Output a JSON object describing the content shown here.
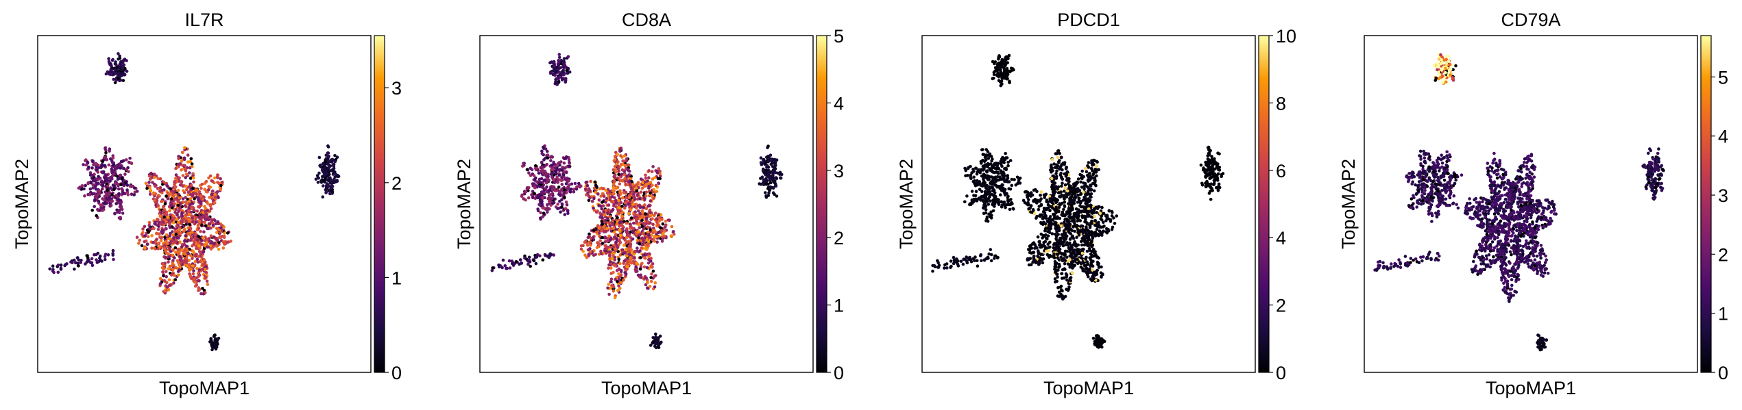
{
  "chart_data": [
    {
      "type": "scatter",
      "title": "IL7R",
      "xlabel": "TopoMAP1",
      "ylabel": "TopoMAP2",
      "colorbar": {
        "colormap": "inferno",
        "min": 0,
        "max": 3.55,
        "ticks": [
          0,
          1,
          2,
          3
        ]
      },
      "expression_level": {
        "main_cluster": 2.1,
        "left_cluster": 1.2,
        "top_cluster": 0.6,
        "right_cluster": 0.4,
        "bottom_cluster": 0.2,
        "left_tail": 0.7
      }
    },
    {
      "type": "scatter",
      "title": "CD8A",
      "xlabel": "TopoMAP1",
      "ylabel": "TopoMAP2",
      "colorbar": {
        "colormap": "inferno",
        "min": 0,
        "max": 5,
        "ticks": [
          0,
          1,
          2,
          3,
          4,
          5
        ]
      },
      "expression_level": {
        "main_cluster": 3.0,
        "left_cluster": 1.8,
        "top_cluster": 1.0,
        "right_cluster": 0.5,
        "bottom_cluster": 0.4,
        "left_tail": 1.0
      }
    },
    {
      "type": "scatter",
      "title": "PDCD1",
      "xlabel": "TopoMAP1",
      "ylabel": "TopoMAP2",
      "colorbar": {
        "colormap": "inferno",
        "min": 0,
        "max": 10,
        "ticks": [
          0,
          2,
          4,
          6,
          8,
          10
        ]
      },
      "expression_level": {
        "main_cluster": 0.3,
        "left_cluster": 0.3,
        "top_cluster": 0.1,
        "right_cluster": 0.1,
        "bottom_cluster": 0.1,
        "left_tail": 0.5
      }
    },
    {
      "type": "scatter",
      "title": "CD79A",
      "xlabel": "TopoMAP1",
      "ylabel": "TopoMAP2",
      "colorbar": {
        "colormap": "inferno",
        "min": 0,
        "max": 5.7,
        "ticks": [
          0,
          1,
          2,
          3,
          4,
          5
        ]
      },
      "expression_level": {
        "main_cluster": 1.1,
        "left_cluster": 1.0,
        "top_cluster": 5.2,
        "right_cluster": 0.9,
        "bottom_cluster": 0.3,
        "left_tail": 1.0
      }
    }
  ]
}
